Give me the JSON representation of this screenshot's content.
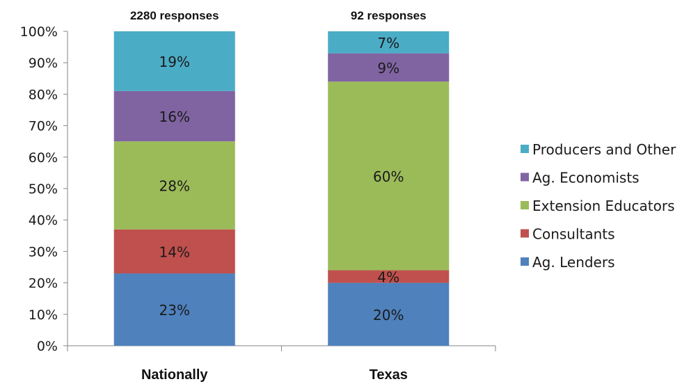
{
  "chart_data": {
    "type": "bar",
    "stacked": true,
    "categories": [
      "Nationally",
      "Texas"
    ],
    "category_annotations": [
      "2280 responses",
      "92 responses"
    ],
    "series": [
      {
        "name": "Ag. Lenders",
        "values": [
          23,
          20
        ],
        "labels": [
          "23%",
          "20%"
        ],
        "color": "#4F81BD"
      },
      {
        "name": "Consultants",
        "values": [
          14,
          4
        ],
        "labels": [
          "14%",
          "4%"
        ],
        "color": "#C0504D"
      },
      {
        "name": "Extension Educators",
        "values": [
          28,
          60
        ],
        "labels": [
          "28%",
          "60%"
        ],
        "color": "#9BBB59"
      },
      {
        "name": "Ag. Economists",
        "values": [
          16,
          9
        ],
        "labels": [
          "16%",
          "9%"
        ],
        "color": "#8064A2"
      },
      {
        "name": "Producers and Other",
        "values": [
          19,
          7
        ],
        "labels": [
          "19%",
          "7%"
        ],
        "color": "#4BACC6"
      }
    ],
    "ylim": [
      0,
      100
    ],
    "yticks": [
      "0%",
      "10%",
      "20%",
      "30%",
      "40%",
      "50%",
      "60%",
      "70%",
      "80%",
      "90%",
      "100%"
    ],
    "legend_position": "right",
    "grid": false
  }
}
